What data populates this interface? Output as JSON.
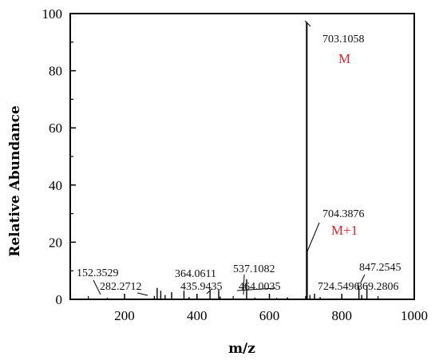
{
  "chart_data": {
    "type": "bar",
    "title": "",
    "xlabel": "m/z",
    "ylabel": "Relative Abundance",
    "xlim": [
      50,
      1000
    ],
    "ylim": [
      0,
      100
    ],
    "x_ticks": [
      200,
      400,
      600,
      800,
      1000
    ],
    "y_ticks": [
      0,
      20,
      40,
      60,
      80,
      100
    ],
    "grid": false,
    "series": [
      {
        "color": "#000000",
        "peaks": [
          {
            "mz": 152.3529,
            "abundance": 0.5
          },
          {
            "mz": 282.2712,
            "abundance": 1.2
          },
          {
            "mz": 290.0,
            "abundance": 4.0
          },
          {
            "mz": 300.0,
            "abundance": 3.0
          },
          {
            "mz": 312.0,
            "abundance": 1.5
          },
          {
            "mz": 330.0,
            "abundance": 2.5
          },
          {
            "mz": 364.0611,
            "abundance": 3.0
          },
          {
            "mz": 378.0,
            "abundance": 0.8
          },
          {
            "mz": 435.9435,
            "abundance": 3.2
          },
          {
            "mz": 460.0,
            "abundance": 3.5
          },
          {
            "mz": 464.0035,
            "abundance": 1.0
          },
          {
            "mz": 537.1082,
            "abundance": 7.0
          },
          {
            "mz": 560.0,
            "abundance": 0.6
          },
          {
            "mz": 620.0,
            "abundance": 0.5
          },
          {
            "mz": 650.0,
            "abundance": 0.7
          },
          {
            "mz": 703.1058,
            "abundance": 97.0
          },
          {
            "mz": 704.3876,
            "abundance": 17.0
          },
          {
            "mz": 712.0,
            "abundance": 1.5
          },
          {
            "mz": 724.5496,
            "abundance": 2.0
          },
          {
            "mz": 740.0,
            "abundance": 0.8
          },
          {
            "mz": 847.2545,
            "abundance": 4.0
          },
          {
            "mz": 855.0,
            "abundance": 1.5
          },
          {
            "mz": 869.2806,
            "abundance": 5.0
          }
        ]
      }
    ],
    "annotations": [
      {
        "text": "703.1058",
        "mz": 703.1058
      },
      {
        "text": "M",
        "mz": 703.1058
      },
      {
        "text": "704.3876",
        "mz": 704.3876
      },
      {
        "text": "M+1",
        "mz": 704.3876
      },
      {
        "text": "152.3529",
        "mz": 152.3529
      },
      {
        "text": "282.2712",
        "mz": 282.2712
      },
      {
        "text": "364.0611",
        "mz": 364.0611
      },
      {
        "text": "435.9435",
        "mz": 435.9435
      },
      {
        "text": "464.0035",
        "mz": 464.0035
      },
      {
        "text": "537.1082",
        "mz": 537.1082
      },
      {
        "text": "724.5496",
        "mz": 724.5496
      },
      {
        "text": "847.2545",
        "mz": 847.2545
      },
      {
        "text": "869.2806",
        "mz": 869.2806
      }
    ],
    "annotation_color": "#e0262b"
  }
}
